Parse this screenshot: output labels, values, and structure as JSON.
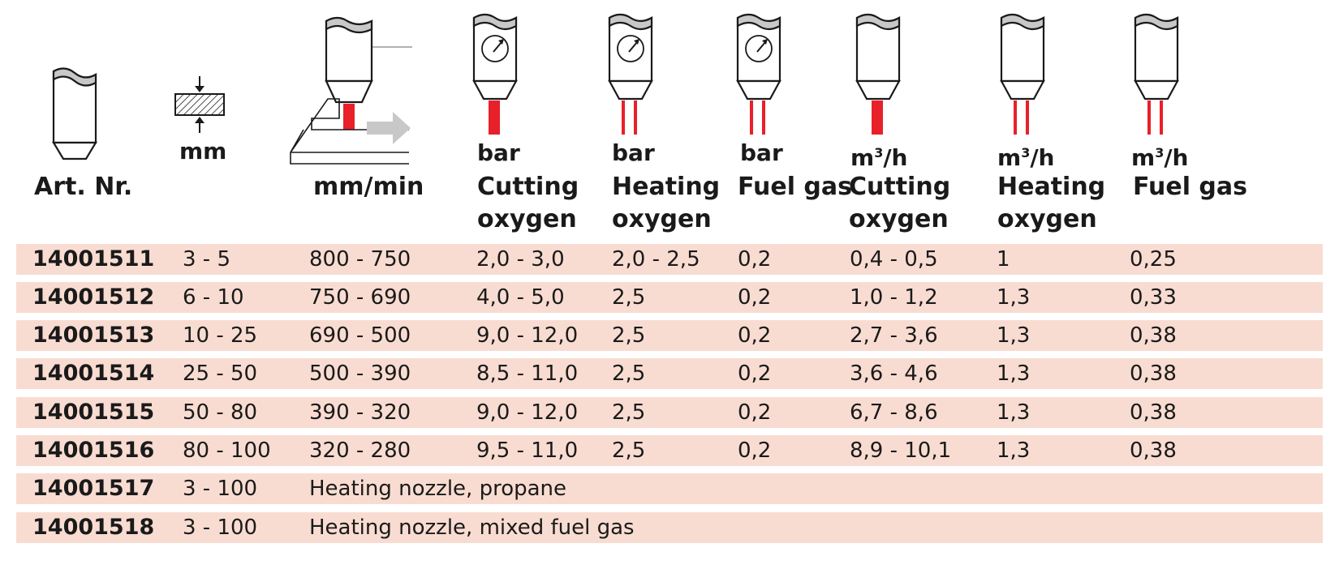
{
  "header": {
    "art": "Art. Nr.",
    "mm": "mm",
    "speed": "mm/min",
    "bar": "bar",
    "m3h": "m",
    "m3h_sup": "3",
    "m3h_suffix": "/h",
    "cutting": "Cutting",
    "heating": "Heating",
    "oxygen": "oxygen",
    "fuel_gas": "Fuel gas"
  },
  "colors": {
    "row_bg": "#f9dcd1",
    "red": "#e8202a",
    "text": "#1a1a1a",
    "arrow": "#c8c8c8"
  },
  "icons": [
    "nozzle-icon",
    "thickness-icon",
    "cutting-process-icon",
    "nozzle-gauge-icon",
    "nozzle-cutting-stream-icon",
    "nozzle-heating-stream-icon"
  ],
  "rows": [
    {
      "art": "14001511",
      "mm": "3 - 5",
      "speed": "800 - 750",
      "cut_bar": "2,0 - 3,0",
      "heat_bar": "2,0 - 2,5",
      "fuel_bar": "0,2",
      "cut_m3h": "0,4 - 0,5",
      "heat_m3h": "1",
      "fuel_m3h": "0,25"
    },
    {
      "art": "14001512",
      "mm": "6 - 10",
      "speed": "750 - 690",
      "cut_bar": "4,0 - 5,0",
      "heat_bar": "2,5",
      "fuel_bar": "0,2",
      "cut_m3h": "1,0 - 1,2",
      "heat_m3h": "1,3",
      "fuel_m3h": "0,33"
    },
    {
      "art": "14001513",
      "mm": "10 - 25",
      "speed": "690 - 500",
      "cut_bar": "9,0 - 12,0",
      "heat_bar": "2,5",
      "fuel_bar": "0,2",
      "cut_m3h": "2,7 - 3,6",
      "heat_m3h": "1,3",
      "fuel_m3h": "0,38"
    },
    {
      "art": "14001514",
      "mm": "25 - 50",
      "speed": "500 - 390",
      "cut_bar": "8,5 - 11,0",
      "heat_bar": "2,5",
      "fuel_bar": "0,2",
      "cut_m3h": "3,6 - 4,6",
      "heat_m3h": "1,3",
      "fuel_m3h": "0,38"
    },
    {
      "art": "14001515",
      "mm": "50 - 80",
      "speed": "390 - 320",
      "cut_bar": "9,0 - 12,0",
      "heat_bar": "2,5",
      "fuel_bar": "0,2",
      "cut_m3h": "6,7 - 8,6",
      "heat_m3h": "1,3",
      "fuel_m3h": "0,38"
    },
    {
      "art": "14001516",
      "mm": "80 - 100",
      "speed": "320 - 280",
      "cut_bar": "9,5 - 11,0",
      "heat_bar": "2,5",
      "fuel_bar": "0,2",
      "cut_m3h": "8,9 - 10,1",
      "heat_m3h": "1,3",
      "fuel_m3h": "0,38"
    },
    {
      "art": "14001517",
      "mm": "3 - 100",
      "speed": "Heating nozzle, propane",
      "cut_bar": "",
      "heat_bar": "",
      "fuel_bar": "",
      "cut_m3h": "",
      "heat_m3h": "",
      "fuel_m3h": ""
    },
    {
      "art": "14001518",
      "mm": "3 - 100",
      "speed": "Heating nozzle, mixed fuel gas",
      "cut_bar": "",
      "heat_bar": "",
      "fuel_bar": "",
      "cut_m3h": "",
      "heat_m3h": "",
      "fuel_m3h": ""
    }
  ]
}
